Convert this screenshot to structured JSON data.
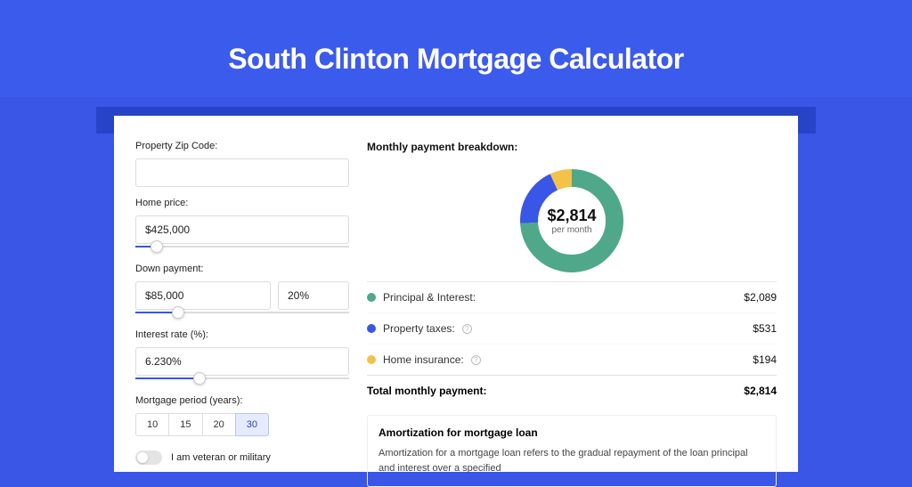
{
  "page": {
    "title": "South Clinton Mortgage Calculator",
    "background_color": "#3956e6",
    "header_band_color": "#3b5bed",
    "accent_color": "#2744c9",
    "card_background": "#ffffff"
  },
  "form": {
    "zip": {
      "label": "Property Zip Code:",
      "value": ""
    },
    "home_price": {
      "label": "Home price:",
      "value": "$425,000",
      "slider_percent": 10
    },
    "down_payment": {
      "label": "Down payment:",
      "amount": "$85,000",
      "percent": "20%",
      "slider_percent": 20
    },
    "interest_rate": {
      "label": "Interest rate (%):",
      "value": "6.230%",
      "slider_percent": 30
    },
    "mortgage_period": {
      "label": "Mortgage period (years):",
      "options": [
        "10",
        "15",
        "20",
        "30"
      ],
      "selected": "30"
    },
    "veteran_toggle": {
      "label": "I am veteran or military",
      "on": false
    }
  },
  "breakdown": {
    "title": "Monthly payment breakdown:",
    "donut": {
      "value": "$2,814",
      "sub": "per month",
      "size": 120,
      "thickness": 20,
      "segments": [
        {
          "label": "Principal & Interest:",
          "value": "$2,089",
          "color": "#4ea889",
          "percent": 74.2,
          "has_info": false
        },
        {
          "label": "Property taxes:",
          "value": "$531",
          "color": "#3956e6",
          "percent": 18.9,
          "has_info": true
        },
        {
          "label": "Home insurance:",
          "value": "$194",
          "color": "#f2c249",
          "percent": 6.9,
          "has_info": true
        }
      ]
    },
    "total_label": "Total monthly payment:",
    "total_value": "$2,814"
  },
  "amortization": {
    "title": "Amortization for mortgage loan",
    "text": "Amortization for a mortgage loan refers to the gradual repayment of the loan principal and interest over a specified"
  },
  "fonts": {
    "title_size_pt": 24,
    "label_size_pt": 8,
    "value_size_pt": 9
  }
}
